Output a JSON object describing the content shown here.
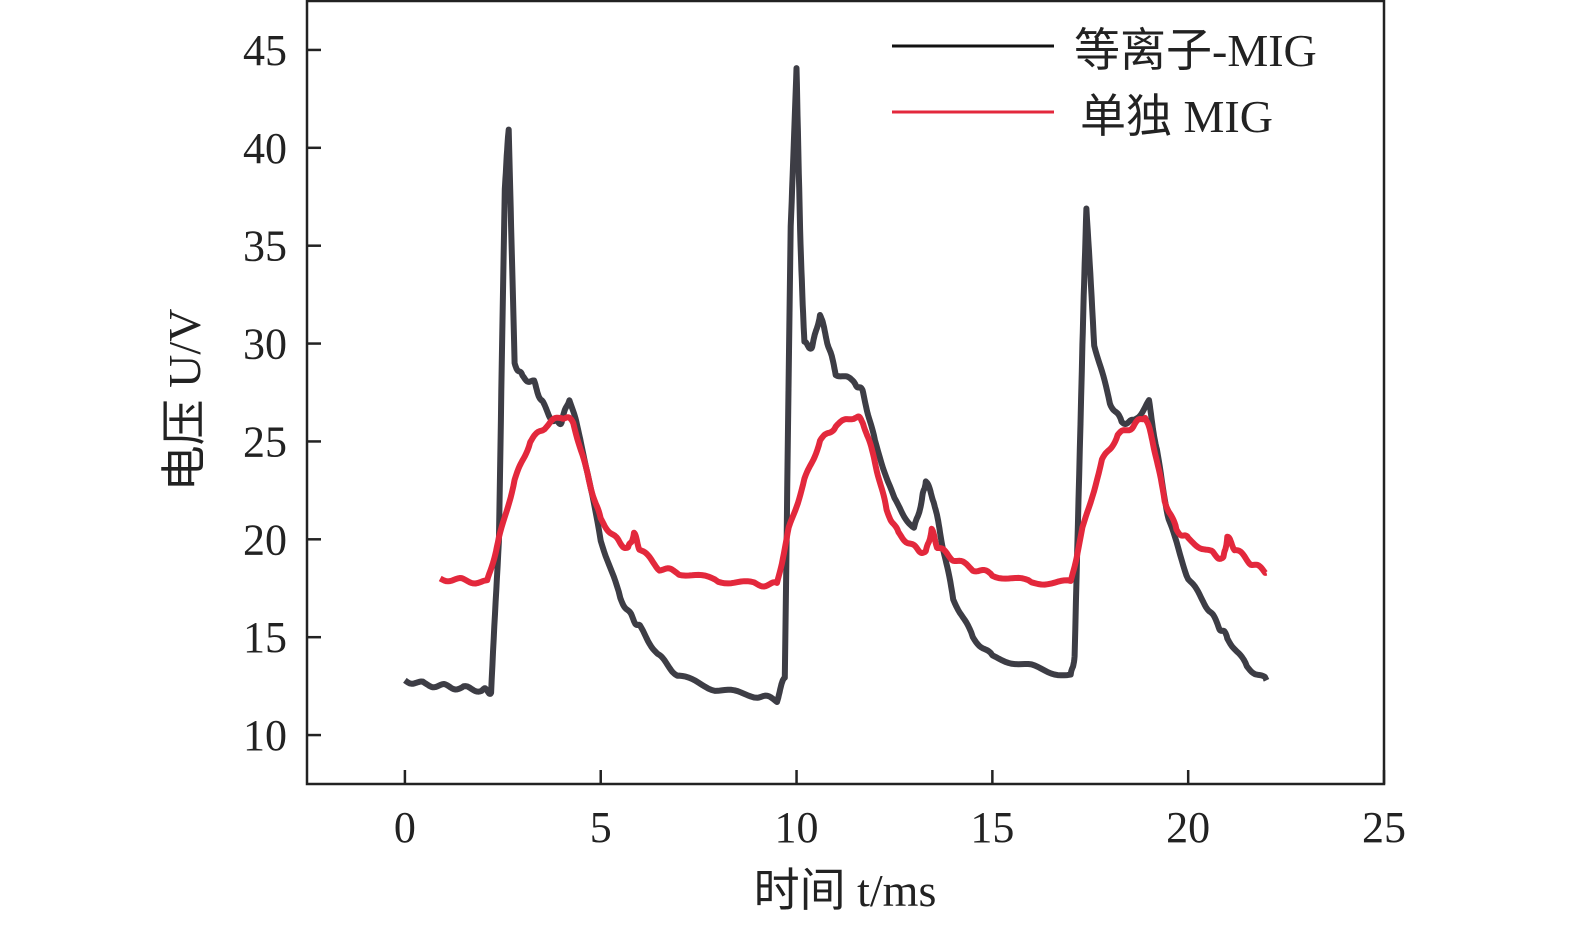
{
  "chart_data": {
    "type": "line",
    "title": "",
    "xlabel": "时间 t/ms",
    "ylabel": "电压 U/V",
    "xlim": [
      -2.5,
      25
    ],
    "ylim": [
      7.5,
      47.5
    ],
    "xticks": [
      0,
      5,
      10,
      15,
      20,
      25
    ],
    "yticks": [
      10,
      15,
      20,
      25,
      30,
      35,
      40,
      45
    ],
    "grid": false,
    "legend_position": "top-right",
    "series": [
      {
        "name": "等离子-MIG",
        "color": "#3d3d45",
        "x": [
          0,
          0.5,
          1,
          1.5,
          2,
          2.2,
          2.4,
          2.55,
          2.65,
          2.8,
          3.0,
          3.3,
          3.5,
          3.8,
          4.0,
          4.2,
          4.5,
          5.0,
          5.5,
          5.8,
          6.0,
          6.5,
          7,
          8,
          9,
          9.5,
          9.7,
          9.85,
          10.0,
          10.1,
          10.2,
          10.4,
          10.6,
          10.8,
          11.0,
          11.5,
          11.7,
          12,
          12.5,
          13.0,
          13.2,
          13.3,
          13.5,
          13.7,
          14,
          14.5,
          15,
          16,
          17,
          17.1,
          17.3,
          17.4,
          17.6,
          18,
          18.3,
          18.6,
          19.0,
          19.2,
          19.5,
          20,
          20.5,
          20.8,
          21,
          21.5,
          22
        ],
        "y": [
          12.8,
          12.6,
          12.5,
          12.4,
          12.3,
          12.2,
          20,
          38,
          41,
          29,
          28.3,
          28,
          27,
          26,
          26,
          27.2,
          25,
          20,
          17,
          16,
          15.5,
          14,
          13,
          12.3,
          12,
          11.8,
          13,
          36,
          44,
          35,
          30,
          29.8,
          31.5,
          30,
          28.5,
          28,
          27.5,
          25,
          22,
          20.5,
          22,
          23,
          22,
          20,
          17,
          15,
          14,
          13.5,
          13,
          14,
          30,
          37,
          30,
          27,
          26,
          26,
          27,
          24.5,
          21,
          18,
          16.5,
          15.5,
          15,
          13.5,
          12.8
        ]
      },
      {
        "name": "单独 MIG",
        "color": "#e3283c",
        "x": [
          0.9,
          1.5,
          2.1,
          2.4,
          2.8,
          3.2,
          3.6,
          4.0,
          4.3,
          4.7,
          5.0,
          5.4,
          5.7,
          5.85,
          6.0,
          6.5,
          7,
          8,
          9,
          9.5,
          9.8,
          10.2,
          10.6,
          11.0,
          11.5,
          11.7,
          12.0,
          12.3,
          12.6,
          13,
          13.3,
          13.45,
          13.6,
          14,
          14.5,
          15,
          16,
          17,
          17.3,
          17.8,
          18.2,
          18.6,
          18.9,
          19.1,
          19.4,
          19.7,
          20,
          20.6,
          20.9,
          21.0,
          21.2,
          21.6,
          22
        ],
        "y": [
          18,
          17.9,
          17.8,
          20,
          23,
          25,
          25.8,
          26.3,
          26,
          23,
          21,
          20,
          19.5,
          20.3,
          19.5,
          18.5,
          18.3,
          17.9,
          17.7,
          17.7,
          20.5,
          23,
          25,
          25.8,
          26.3,
          26,
          24,
          21.5,
          20.3,
          19.6,
          19.3,
          20.5,
          19.6,
          19,
          18.5,
          18.2,
          17.8,
          17.8,
          20.5,
          24,
          25.3,
          25.8,
          26.3,
          25,
          22,
          20.5,
          20,
          19.3,
          19,
          20.1,
          19.5,
          18.8,
          18.3
        ]
      }
    ]
  }
}
